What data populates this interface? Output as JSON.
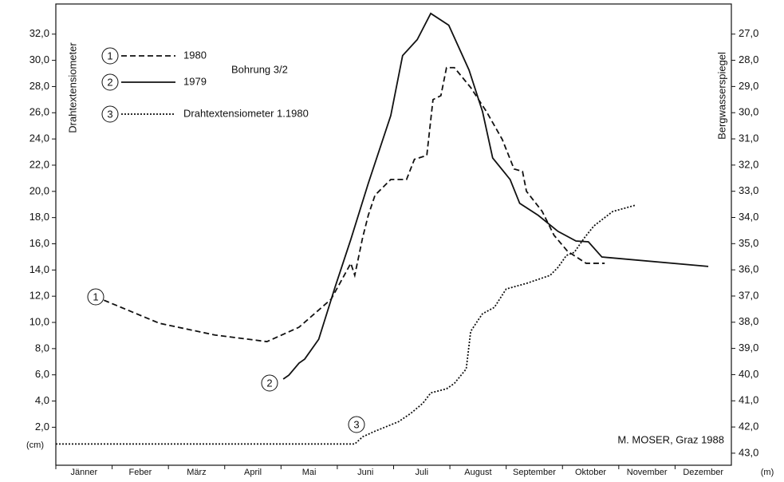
{
  "chart_data": {
    "type": "line",
    "legend_title": "Bohrung 3/2",
    "ylabel": "Drahtextensiometer",
    "y2label": "Bergwasserspiegel",
    "yunit": "(cm)",
    "y2unit": "(m)",
    "credit": "M. MOSER, Graz 1988",
    "categories": [
      "Jänner",
      "Feber",
      "März",
      "April",
      "Mai",
      "Juni",
      "Juli",
      "August",
      "September",
      "Oktober",
      "November",
      "Dezember"
    ],
    "xlim": [
      0,
      12
    ],
    "ylim": [
      -0.9,
      34.3
    ],
    "yticks": [
      {
        "value": 2,
        "label": "2,0"
      },
      {
        "value": 4,
        "label": "4,0"
      },
      {
        "value": 6,
        "label": "6,0"
      },
      {
        "value": 8,
        "label": "8,0"
      },
      {
        "value": 10,
        "label": "10,0"
      },
      {
        "value": 12,
        "label": "12,0"
      },
      {
        "value": 14,
        "label": "14,0"
      },
      {
        "value": 16,
        "label": "16,0"
      },
      {
        "value": 18,
        "label": "18,0"
      },
      {
        "value": 20,
        "label": "20,0"
      },
      {
        "value": 22,
        "label": "22,0"
      },
      {
        "value": 24,
        "label": "24,0"
      },
      {
        "value": 26,
        "label": "26,0"
      },
      {
        "value": 28,
        "label": "28,0"
      },
      {
        "value": 30,
        "label": "30,0"
      },
      {
        "value": 32,
        "label": "32,0"
      }
    ],
    "y2lim": [
      43.46,
      25.85
    ],
    "y2ticks": [
      {
        "value": 27,
        "label": "27,0"
      },
      {
        "value": 28,
        "label": "28,0"
      },
      {
        "value": 29,
        "label": "29,0"
      },
      {
        "value": 30,
        "label": "30,0"
      },
      {
        "value": 31,
        "label": "31,0"
      },
      {
        "value": 32,
        "label": "32,0"
      },
      {
        "value": 33,
        "label": "33,0"
      },
      {
        "value": 34,
        "label": "34,0"
      },
      {
        "value": 35,
        "label": "35,0"
      },
      {
        "value": 36,
        "label": "36,0"
      },
      {
        "value": 37,
        "label": "37,0"
      },
      {
        "value": 38,
        "label": "38,0"
      },
      {
        "value": 39,
        "label": "39,0"
      },
      {
        "value": 40,
        "label": "40,0"
      },
      {
        "value": 41,
        "label": "41,0"
      },
      {
        "value": 42,
        "label": "42,0"
      },
      {
        "value": 43,
        "label": "43,0"
      }
    ],
    "series": [
      {
        "label": "1",
        "name": "1980",
        "color": "#111111",
        "dash": "dashed",
        "axis": "y2",
        "x": [
          0.71,
          1.84,
          2.83,
          3.75,
          4.32,
          4.89,
          5.24,
          5.31,
          5.45,
          5.55,
          5.67,
          5.95,
          6.23,
          6.37,
          6.59,
          6.7,
          6.84,
          6.94,
          7.08,
          7.37,
          7.65,
          7.93,
          8.14,
          8.29,
          8.36,
          8.64,
          8.85,
          9.09,
          9.42,
          9.75
        ],
        "values": [
          37.03,
          38.04,
          38.49,
          38.74,
          38.19,
          37.12,
          35.75,
          36.21,
          34.77,
          33.92,
          33.15,
          32.55,
          32.55,
          31.78,
          31.63,
          29.5,
          29.35,
          28.28,
          28.28,
          29.04,
          29.96,
          31.02,
          32.15,
          32.24,
          33.0,
          33.77,
          34.68,
          35.29,
          35.75,
          35.75
        ]
      },
      {
        "label": "2",
        "name": "1979",
        "color": "#111111",
        "dash": "solid",
        "axis": "y2",
        "x": [
          4.04,
          4.14,
          4.32,
          4.42,
          4.67,
          4.96,
          5.24,
          5.55,
          5.95,
          6.16,
          6.42,
          6.66,
          6.98,
          7.34,
          7.58,
          7.76,
          8.07,
          8.24,
          8.57,
          8.92,
          9.24,
          9.46,
          9.7,
          11.59
        ],
        "values": [
          40.17,
          40.02,
          39.56,
          39.41,
          38.65,
          36.66,
          34.84,
          32.7,
          30.11,
          27.82,
          27.21,
          26.21,
          26.66,
          28.37,
          29.96,
          31.73,
          32.55,
          33.46,
          33.92,
          34.53,
          34.9,
          34.93,
          35.51,
          35.87
        ]
      },
      {
        "label": "3",
        "name": "Drahtextensiometer 1.1980",
        "color": "#111111",
        "dash": "dotted",
        "axis": "y",
        "x": [
          0,
          5.31,
          5.45,
          5.67,
          6.09,
          6.3,
          6.52,
          6.66,
          6.94,
          7.08,
          7.29,
          7.37,
          7.51,
          7.58,
          7.79,
          8.0,
          8.36,
          8.78,
          8.92,
          9.07,
          9.21,
          9.39,
          9.56,
          9.89,
          10.3
        ],
        "values": [
          0.72,
          0.72,
          1.27,
          1.7,
          2.43,
          3.04,
          3.83,
          4.62,
          4.93,
          5.35,
          6.45,
          9.32,
          10.23,
          10.66,
          11.15,
          12.55,
          12.98,
          13.59,
          14.2,
          15.11,
          15.35,
          16.46,
          17.37,
          18.46,
          18.95
        ]
      }
    ]
  }
}
